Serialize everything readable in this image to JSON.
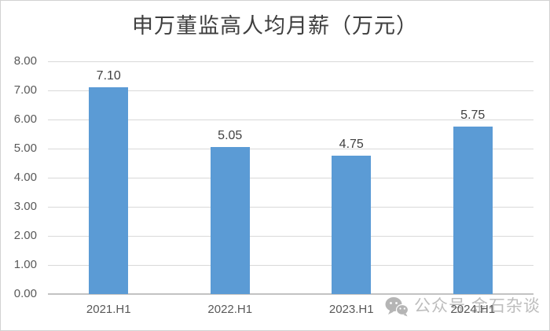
{
  "chart_data": {
    "type": "bar",
    "title": "申万董监高人均月薪（万元）",
    "categories": [
      "2021.H1",
      "2022.H1",
      "2023.H1",
      "2024.H1"
    ],
    "values": [
      7.1,
      5.05,
      4.75,
      5.75
    ],
    "value_labels": [
      "7.10",
      "5.05",
      "4.75",
      "5.75"
    ],
    "xlabel": "",
    "ylabel": "",
    "ylim": [
      0,
      8
    ],
    "ytick_step": 1,
    "ytick_labels": [
      "0.00",
      "1.00",
      "2.00",
      "3.00",
      "4.00",
      "5.00",
      "6.00",
      "7.00",
      "8.00"
    ],
    "grid": true,
    "legend": "none",
    "bar_color": "#5B9BD5",
    "gridline_color": "#D9D9D9",
    "axis_line_color": "#C3C3C3",
    "title_color": "#3F3F3F",
    "tick_label_color": "#595959",
    "value_label_color": "#404040"
  },
  "watermark": {
    "icon": "wechat-icon",
    "text": "公众号 金石杂谈",
    "color": "#BDBDBD"
  }
}
